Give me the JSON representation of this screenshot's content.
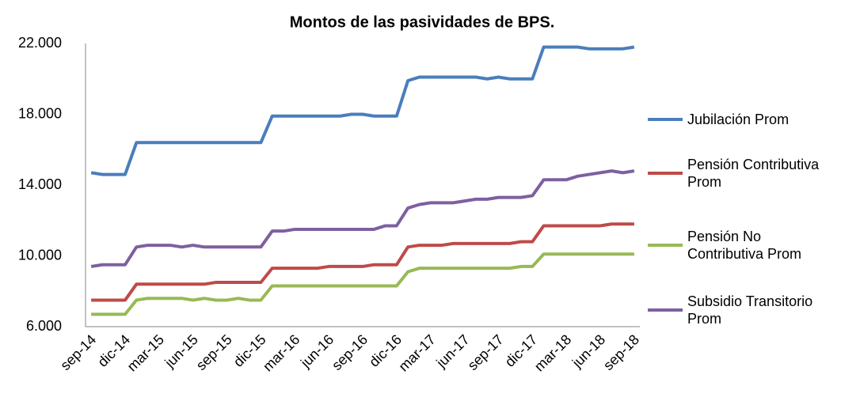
{
  "chart_data": {
    "type": "line",
    "title": "Montos de las pasividades de BPS.",
    "categories": [
      "sep-14",
      null,
      null,
      "dic-14",
      null,
      null,
      "mar-15",
      null,
      null,
      "jun-15",
      null,
      null,
      "sep-15",
      null,
      null,
      "dic-15",
      null,
      null,
      "mar-16",
      null,
      null,
      "jun-16",
      null,
      null,
      "sep-16",
      null,
      null,
      "dic-16",
      null,
      null,
      "mar-17",
      null,
      null,
      "jun-17",
      null,
      null,
      "sep-17",
      null,
      null,
      "dic-17",
      null,
      null,
      "mar-18",
      null,
      null,
      "jun-18",
      null,
      null,
      "sep-18"
    ],
    "series": [
      {
        "name": "Jubilación Prom",
        "color": "#4a7ebb",
        "values": [
          14700,
          14600,
          14600,
          14600,
          16400,
          16400,
          16400,
          16400,
          16400,
          16400,
          16400,
          16400,
          16400,
          16400,
          16400,
          16400,
          17900,
          17900,
          17900,
          17900,
          17900,
          17900,
          17900,
          18000,
          18000,
          17900,
          17900,
          17900,
          19900,
          20100,
          20100,
          20100,
          20100,
          20100,
          20100,
          20000,
          20100,
          20000,
          20000,
          20000,
          21800,
          21800,
          21800,
          21800,
          21700,
          21700,
          21700,
          21700,
          21800
        ]
      },
      {
        "name": "Pensión Contributiva Prom",
        "color": "#be4b48",
        "values": [
          7500,
          7500,
          7500,
          7500,
          8400,
          8400,
          8400,
          8400,
          8400,
          8400,
          8400,
          8500,
          8500,
          8500,
          8500,
          8500,
          9300,
          9300,
          9300,
          9300,
          9300,
          9400,
          9400,
          9400,
          9400,
          9500,
          9500,
          9500,
          10500,
          10600,
          10600,
          10600,
          10700,
          10700,
          10700,
          10700,
          10700,
          10700,
          10800,
          10800,
          11700,
          11700,
          11700,
          11700,
          11700,
          11700,
          11800,
          11800,
          11800
        ]
      },
      {
        "name": "Pensión No Contributiva Prom",
        "color": "#98b954",
        "values": [
          6700,
          6700,
          6700,
          6700,
          7500,
          7600,
          7600,
          7600,
          7600,
          7500,
          7600,
          7500,
          7500,
          7600,
          7500,
          7500,
          8300,
          8300,
          8300,
          8300,
          8300,
          8300,
          8300,
          8300,
          8300,
          8300,
          8300,
          8300,
          9100,
          9300,
          9300,
          9300,
          9300,
          9300,
          9300,
          9300,
          9300,
          9300,
          9400,
          9400,
          10100,
          10100,
          10100,
          10100,
          10100,
          10100,
          10100,
          10100,
          10100
        ]
      },
      {
        "name": "Subsidio Transitorio Prom",
        "color": "#7d60a0",
        "values": [
          9400,
          9500,
          9500,
          9500,
          10500,
          10600,
          10600,
          10600,
          10500,
          10600,
          10500,
          10500,
          10500,
          10500,
          10500,
          10500,
          11400,
          11400,
          11500,
          11500,
          11500,
          11500,
          11500,
          11500,
          11500,
          11500,
          11700,
          11700,
          12700,
          12900,
          13000,
          13000,
          13000,
          13100,
          13200,
          13200,
          13300,
          13300,
          13300,
          13400,
          14300,
          14300,
          14300,
          14500,
          14600,
          14700,
          14800,
          14700,
          14800
        ]
      }
    ],
    "ylim": [
      6000,
      22000
    ],
    "yticks": [
      {
        "value": 6000,
        "label": "6.000"
      },
      {
        "value": 10000,
        "label": "10.000"
      },
      {
        "value": 14000,
        "label": "14.000"
      },
      {
        "value": 18000,
        "label": "18.000"
      },
      {
        "value": 22000,
        "label": "22.000"
      }
    ],
    "legend": "right"
  }
}
